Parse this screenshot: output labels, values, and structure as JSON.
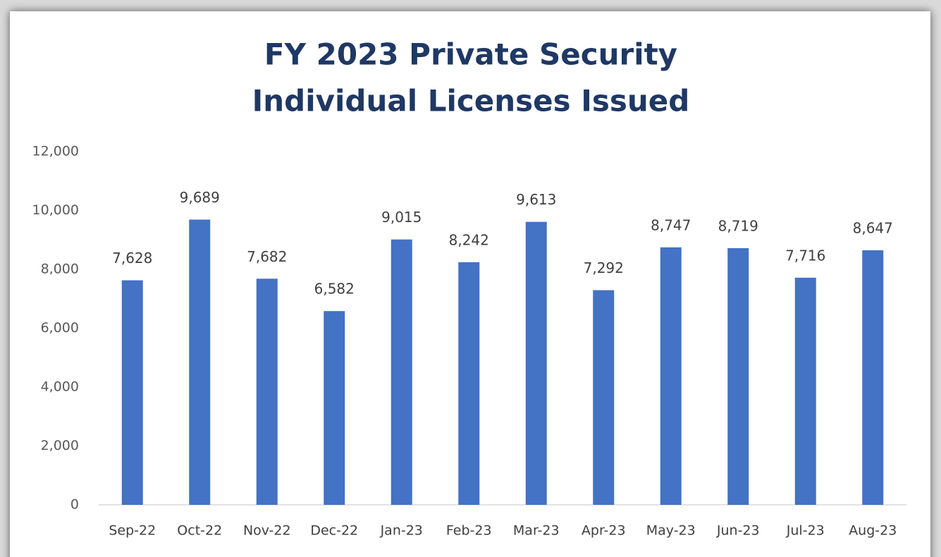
{
  "chart_data": {
    "type": "bar",
    "title": [
      "FY 2023 Private Security",
      "Individual Licenses Issued"
    ],
    "categories": [
      "Sep-22",
      "Oct-22",
      "Nov-22",
      "Dec-22",
      "Jan-23",
      "Feb-23",
      "Mar-23",
      "Apr-23",
      "May-23",
      "Jun-23",
      "Jul-23",
      "Aug-23"
    ],
    "values": [
      7628,
      9689,
      7682,
      6582,
      9015,
      8242,
      9613,
      7292,
      8747,
      8719,
      7716,
      8647
    ],
    "value_labels": [
      "7,628",
      "9,689",
      "7,682",
      "6,582",
      "9,015",
      "8,242",
      "9,613",
      "7,292",
      "8,747",
      "8,719",
      "7,716",
      "8,647"
    ],
    "color": "#4472c4",
    "ylim": [
      0,
      12000
    ],
    "yticks": [
      0,
      {
        "value": 2000,
        "label": "2,000"
      },
      {
        "value": 4000,
        "label": "4,000"
      },
      {
        "value": 6000,
        "label": "6,000"
      },
      {
        "value": 8000,
        "label": "8,000"
      },
      {
        "value": 10000,
        "label": "10,000"
      },
      {
        "value": 12000,
        "label": "12,000"
      }
    ],
    "grid": false
  }
}
